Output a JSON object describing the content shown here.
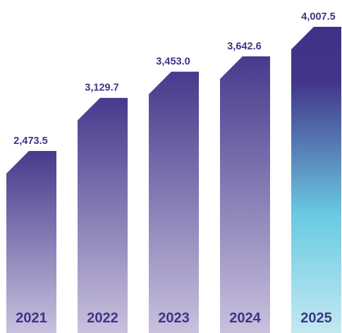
{
  "chart_data": {
    "type": "bar",
    "categories": [
      "2021",
      "2022",
      "2023",
      "2024",
      "2025"
    ],
    "values": [
      2473.5,
      3129.7,
      3453.0,
      3642.6,
      4007.5
    ],
    "value_labels": [
      "2,473.5",
      "3,129.7",
      "3,453.0",
      "3,642.6",
      "4,007.5"
    ],
    "title": "",
    "xlabel": "",
    "ylabel": "",
    "ylim": [
      0,
      4500
    ],
    "grid": false,
    "legend": "none",
    "colors": {
      "bar_top": "#463a8c",
      "bar_bottom": "#c9c1de",
      "highlight_top": "#3f3187",
      "highlight_mid": "#6bcbe3",
      "highlight_bottom": "#c3e8f1",
      "label_text": "#3e3585"
    }
  }
}
